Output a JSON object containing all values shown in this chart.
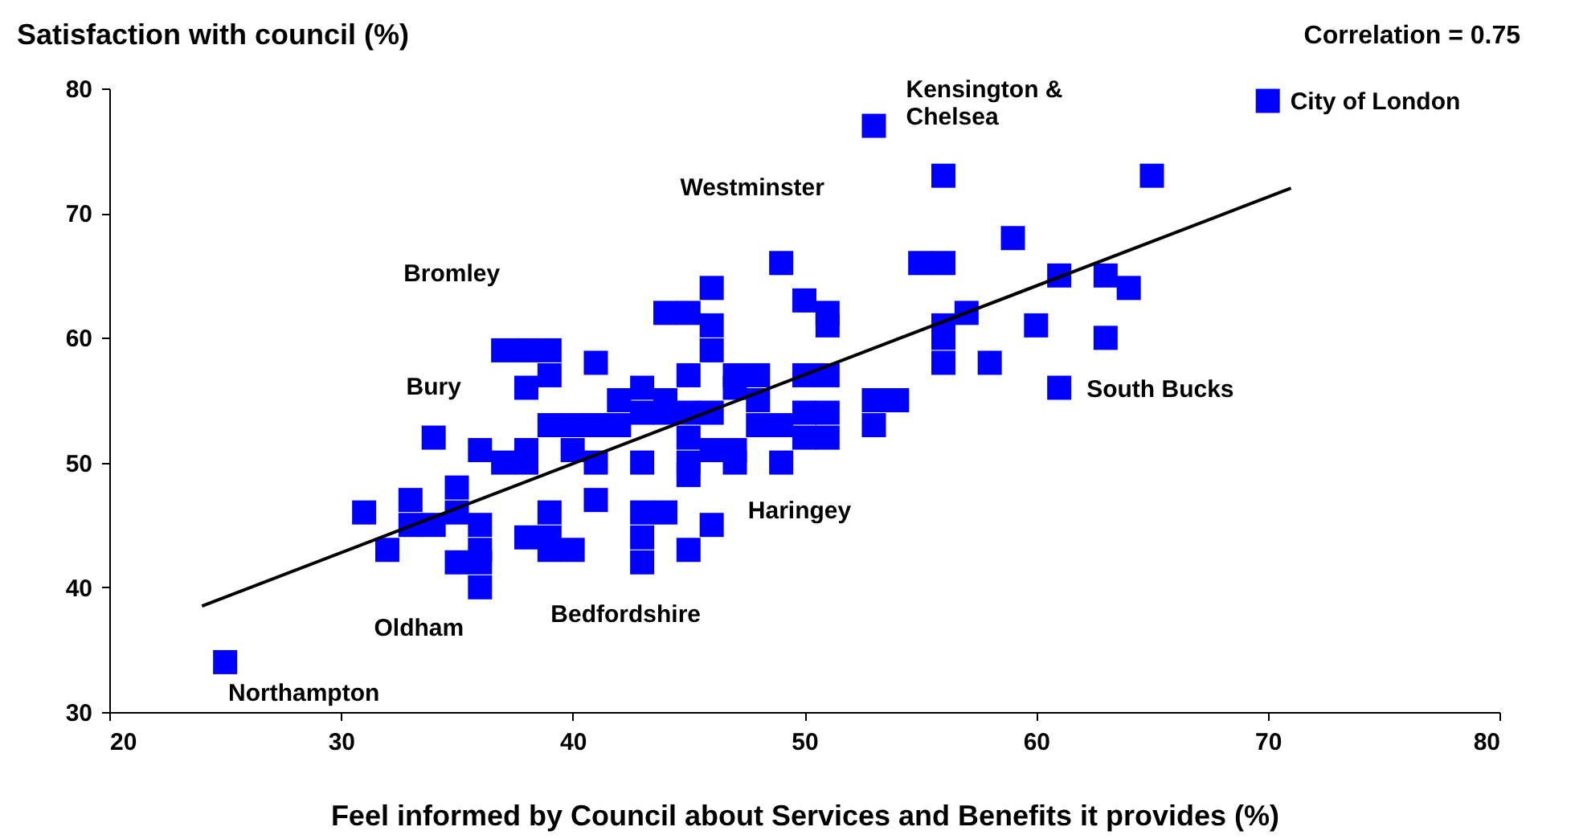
{
  "chart_data": {
    "type": "scatter",
    "ylabel": "Satisfaction with council (%)",
    "xlabel": "Feel informed by Council about Services and Benefits it provides (%)",
    "xlim": [
      20,
      80
    ],
    "xticks": [
      20,
      30,
      40,
      50,
      60,
      70,
      80
    ],
    "ylim": [
      30,
      80
    ],
    "yticks": [
      30,
      40,
      50,
      60,
      70,
      80
    ],
    "grid": false,
    "series": [
      {
        "marker": "square",
        "color": "#0000ff",
        "x": [
          25,
          31,
          32,
          33,
          33,
          34,
          35,
          35,
          35,
          36,
          36,
          36,
          36,
          34,
          36,
          37,
          38,
          39,
          39,
          38,
          37,
          38,
          38,
          39,
          40,
          40,
          41,
          42,
          38,
          39,
          39,
          39,
          40,
          41,
          41,
          41,
          42,
          44,
          43,
          43,
          44,
          43,
          43,
          44,
          43,
          43,
          44,
          45,
          45,
          45,
          46,
          45,
          45,
          45,
          45,
          46,
          46,
          46,
          46,
          46,
          47,
          48,
          47,
          48,
          47,
          47,
          48,
          49,
          49,
          49,
          50,
          51,
          51,
          50,
          51,
          50,
          51,
          50,
          51,
          53,
          53,
          54,
          53,
          55,
          56,
          56,
          56,
          56,
          56,
          57,
          58,
          59,
          60,
          61,
          61,
          63,
          63,
          64,
          65,
          70
        ],
        "values": [
          34,
          46,
          43,
          47,
          45,
          45,
          48,
          46,
          42,
          45,
          43,
          42,
          40,
          52,
          51,
          59,
          59,
          59,
          57,
          56,
          50,
          51,
          50,
          53,
          53,
          51,
          53,
          53,
          44,
          46,
          44,
          43,
          43,
          58,
          50,
          47,
          55,
          55,
          56,
          54,
          54,
          50,
          46,
          46,
          44,
          42,
          62,
          62,
          57,
          54,
          54,
          52,
          50,
          49,
          43,
          64,
          61,
          59,
          51,
          45,
          57,
          57,
          56,
          55,
          51,
          50,
          53,
          53,
          50,
          66,
          63,
          62,
          61,
          57,
          57,
          54,
          54,
          52,
          52,
          77,
          55,
          55,
          53,
          66,
          66,
          73,
          61,
          60,
          58,
          62,
          58,
          68,
          61,
          65,
          56,
          65,
          60,
          64,
          73,
          79
        ]
      },
      {
        "type": "line",
        "color": "#000000",
        "x": [
          24,
          71
        ],
        "values": [
          38.5,
          72
        ]
      }
    ],
    "annotations": [
      {
        "text": "Kensington &\nChelsea",
        "x": 53,
        "y": 77
      },
      {
        "text": "Westminster",
        "x": 49,
        "y": 66
      },
      {
        "text": "Bromley",
        "x": 37,
        "y": 59
      },
      {
        "text": "Bury",
        "x": 34,
        "y": 52
      },
      {
        "text": "Oldham",
        "x": 36,
        "y": 40
      },
      {
        "text": "Bedfordshire",
        "x": 40,
        "y": 43
      },
      {
        "text": "Haringey",
        "x": 45,
        "y": 49
      },
      {
        "text": "Northampton",
        "x": 25,
        "y": 34
      },
      {
        "text": "South Bucks",
        "x": 61,
        "y": 56
      },
      {
        "text": "City of London",
        "x": 70,
        "y": 79
      },
      "Correlation = 0.75"
    ]
  }
}
